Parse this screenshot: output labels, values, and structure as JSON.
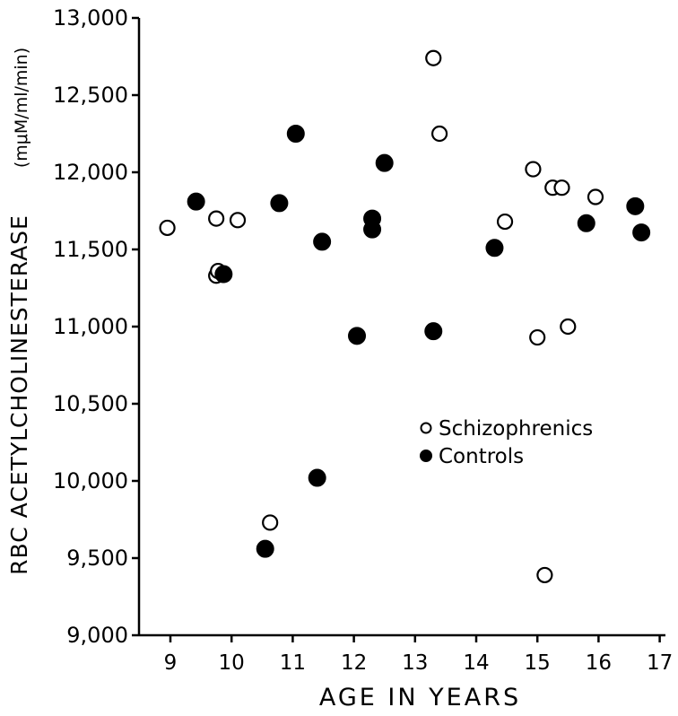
{
  "chart_data": {
    "type": "scatter",
    "title": "",
    "xlabel": "AGE IN YEARS",
    "ylabel": "RBC ACETYLCHOLINESTERASE",
    "ylabel_unit": "(mμM/ml/min)",
    "xlim": [
      8.5,
      17
    ],
    "ylim": [
      9000,
      13000
    ],
    "x_ticks": [
      9,
      10,
      11,
      12,
      13,
      14,
      15,
      16,
      17
    ],
    "x_tick_labels": [
      "9",
      "10",
      "11",
      "12",
      "13",
      "14",
      "15",
      "16",
      "17"
    ],
    "y_ticks": [
      9000,
      9500,
      10000,
      10500,
      11000,
      11500,
      12000,
      12500,
      13000
    ],
    "y_tick_labels": [
      "9,000",
      "9,500",
      "10,000",
      "10,500",
      "11,000",
      "11,500",
      "12,000",
      "12,500",
      "13,000"
    ],
    "grid": false,
    "legend": {
      "placement": "center-right"
    },
    "series": [
      {
        "name": "Schizophrenics",
        "marker": "open-circle",
        "color": "#000000",
        "points": [
          [
            8.95,
            11640
          ],
          [
            9.75,
            11700
          ],
          [
            9.75,
            11330
          ],
          [
            9.78,
            11360
          ],
          [
            10.1,
            11690
          ],
          [
            10.63,
            9730
          ],
          [
            13.3,
            12740
          ],
          [
            13.4,
            12250
          ],
          [
            14.47,
            11680
          ],
          [
            14.93,
            12020
          ],
          [
            15.0,
            10930
          ],
          [
            15.12,
            9390
          ],
          [
            15.25,
            11900
          ],
          [
            15.4,
            11900
          ],
          [
            15.5,
            11000
          ],
          [
            15.95,
            11840
          ]
        ]
      },
      {
        "name": "Controls",
        "marker": "filled-circle",
        "color": "#000000",
        "points": [
          [
            9.42,
            11810
          ],
          [
            9.87,
            11340
          ],
          [
            10.55,
            9560
          ],
          [
            10.78,
            11800
          ],
          [
            11.05,
            12250
          ],
          [
            11.4,
            10020
          ],
          [
            11.48,
            11550
          ],
          [
            12.05,
            10940
          ],
          [
            12.3,
            11700
          ],
          [
            12.3,
            11630
          ],
          [
            12.5,
            12060
          ],
          [
            13.3,
            10970
          ],
          [
            14.3,
            11510
          ],
          [
            15.8,
            11670
          ],
          [
            16.6,
            11780
          ],
          [
            16.7,
            11610
          ]
        ]
      }
    ]
  }
}
